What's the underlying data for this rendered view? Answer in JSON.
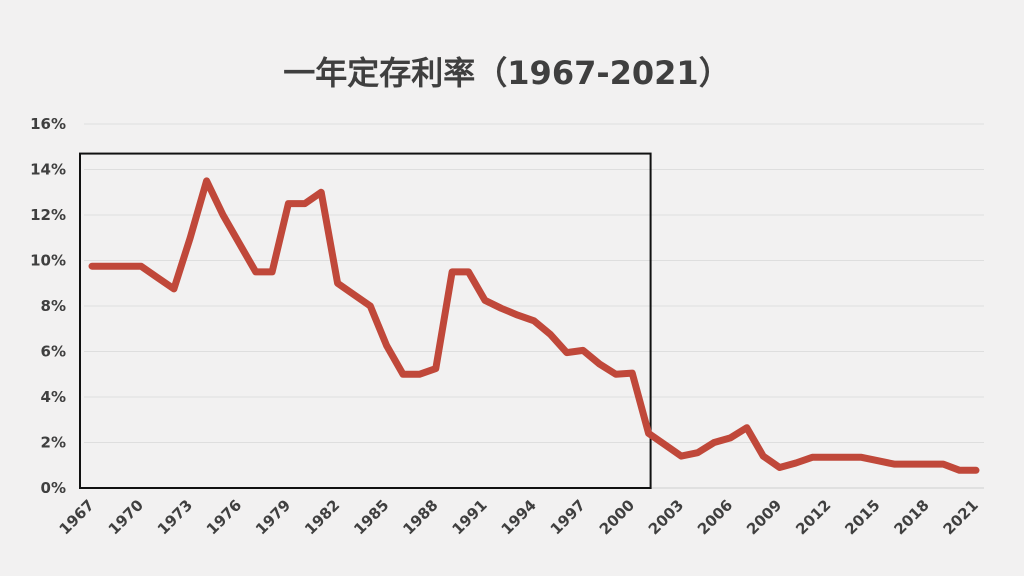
{
  "chart_data": {
    "type": "line",
    "title": "一年定存利率（1967-2021）",
    "xlabel": "",
    "ylabel": "",
    "ylim": [
      0,
      16
    ],
    "y_ticks": [
      "0%",
      "2%",
      "4%",
      "6%",
      "8%",
      "10%",
      "12%",
      "14%",
      "16%"
    ],
    "x_tick_labels": [
      "1967",
      "1970",
      "1973",
      "1976",
      "1979",
      "1982",
      "1985",
      "1988",
      "1991",
      "1994",
      "1997",
      "2000",
      "2003",
      "2006",
      "2009",
      "2012",
      "2015",
      "2018",
      "2021"
    ],
    "grid": true,
    "legend": "none",
    "line_color": "#c0483a",
    "highlight_box": {
      "x_range": [
        1967,
        2001
      ],
      "y_range": [
        0,
        14.7
      ]
    },
    "series": [
      {
        "x": [
          1967,
          1968,
          1969,
          1970,
          1971,
          1972,
          1973,
          1974,
          1975,
          1976,
          1977,
          1978,
          1979,
          1980,
          1981,
          1982,
          1983,
          1984,
          1985,
          1986,
          1987,
          1988,
          1989,
          1990,
          1991,
          1992,
          1993,
          1994,
          1995,
          1996,
          1997,
          1998,
          1999,
          2000,
          2001,
          2002,
          2003,
          2004,
          2005,
          2006,
          2007,
          2008,
          2009,
          2010,
          2011,
          2012,
          2013,
          2014,
          2015,
          2016,
          2017,
          2018,
          2019,
          2020,
          2021
        ],
        "values": [
          9.75,
          9.75,
          9.75,
          9.75,
          9.25,
          8.75,
          11.0,
          13.5,
          12.0,
          10.75,
          9.5,
          9.5,
          12.5,
          12.5,
          13.0,
          9.0,
          8.5,
          8.0,
          6.25,
          5.0,
          5.0,
          5.25,
          9.5,
          9.5,
          8.25,
          7.9,
          7.6,
          7.35,
          6.75,
          5.95,
          6.05,
          5.45,
          5.0,
          5.05,
          2.4,
          1.9,
          1.4,
          1.55,
          2.0,
          2.2,
          2.65,
          1.4,
          0.9,
          1.1,
          1.35,
          1.35,
          1.35,
          1.35,
          1.2,
          1.05,
          1.05,
          1.05,
          1.05,
          0.78,
          0.78
        ]
      }
    ]
  }
}
